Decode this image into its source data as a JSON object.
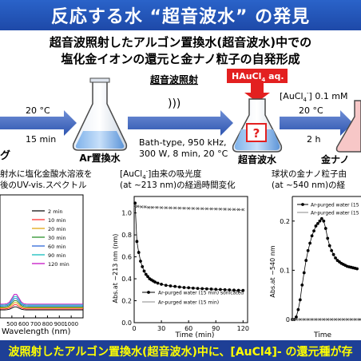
{
  "header": {
    "title": "反応する水 “超音波水” の発見",
    "subtitle_line1": "超音波照射したアルゴン置換水(超音波水)中での",
    "subtitle_line2": "塩化金イオンの還元と金ナノ粒子の自発形成"
  },
  "flow": {
    "step1": {
      "temp": "20 °C",
      "time": "15 min"
    },
    "label_left": "グ",
    "flask_ar_label": "Ar置換水",
    "ultrasound": {
      "title": "超音波照射",
      "waves": ")))",
      "line1": "Bath-type, 950 kHz,",
      "line2": "300 W, 8 min, 20 °C"
    },
    "haucl4_label": "HAuCl",
    "haucl4_sub": "4",
    "haucl4_suffix": " aq.",
    "question_mark": "?",
    "flask_sono_label": "超音波水",
    "step2": {
      "conc_prefix": "[AuCl",
      "conc_sub": "4",
      "conc_sup": "-",
      "conc_suffix": "] 0.1 mM",
      "temp": "20 °C",
      "time": "2 h"
    },
    "flask_right_label": "金ナノ"
  },
  "captions": {
    "left_line1": "射水に塩化金酸水溶液を",
    "left_line2": "後のUV-vis.スペクトル",
    "mid_line1_prefix": "[AuCl",
    "mid_line1_sub": "4",
    "mid_line1_sup": "-",
    "mid_line1_suffix": "]由来の吸光度",
    "mid_line2": "(at ~213 nm)の経過時間変化",
    "right_line1": "球状の金ナノ粒子由",
    "right_line2": "(at ~540 nm)の経"
  },
  "footer": {
    "text": "波照射したアルゴン置換水(超音波水)中に、[AuCl4]- の還元種が存"
  },
  "chart_data": [
    {
      "type": "line",
      "xlabel": "Wavelength (nm)",
      "xticks": [
        500,
        600,
        700,
        800,
        900,
        1000
      ],
      "xlim": [
        400,
        1100
      ],
      "ylim": [
        0,
        1
      ],
      "series": [
        {
          "name": "2 min",
          "color": "#000000"
        },
        {
          "name": "10 min",
          "color": "#ff2020"
        },
        {
          "name": "20 min",
          "color": "#e0a000"
        },
        {
          "name": "30 min",
          "color": "#1a8a1a"
        },
        {
          "name": "60 min",
          "color": "#1e5bd6"
        },
        {
          "name": "90 min",
          "color": "#00b8b8"
        },
        {
          "name": "120 min",
          "color": "#c000c0"
        }
      ]
    },
    {
      "type": "line",
      "xlabel": "Time (min)",
      "ylabel": "Abs.at ~213 nm (nm)",
      "xticks": [
        0,
        30,
        60,
        90,
        120
      ],
      "yticks": [
        0,
        0.2,
        0.4,
        0.6,
        0.8,
        1.0
      ],
      "xlim": [
        0,
        125
      ],
      "ylim": [
        0,
        1.15
      ],
      "series": [
        {
          "name": "Ar-purged water (15 min) sonicated",
          "marker": "filled",
          "x": [
            1,
            3,
            5,
            7,
            9,
            11,
            13,
            15,
            17,
            19,
            21,
            23,
            26,
            30,
            35,
            40,
            45,
            50,
            55,
            60,
            65,
            70,
            75,
            80,
            85,
            90,
            95,
            100,
            105,
            110,
            115,
            120
          ],
          "y": [
            1.09,
            0.74,
            0.64,
            0.56,
            0.51,
            0.47,
            0.44,
            0.42,
            0.4,
            0.39,
            0.38,
            0.37,
            0.36,
            0.35,
            0.34,
            0.335,
            0.33,
            0.325,
            0.32,
            0.318,
            0.315,
            0.312,
            0.31,
            0.308,
            0.306,
            0.304,
            0.302,
            0.3,
            0.298,
            0.296,
            0.295,
            0.294
          ]
        },
        {
          "name": "Ar-purged water (15 min)",
          "marker": "open",
          "x": [
            1,
            4,
            8,
            12,
            16,
            20,
            25,
            30,
            35,
            40,
            45,
            50,
            55,
            60,
            65,
            70,
            75,
            80,
            85,
            90,
            95,
            100,
            105,
            110,
            115,
            120
          ],
          "y": [
            1.06,
            1.06,
            1.055,
            1.055,
            1.05,
            1.05,
            1.05,
            1.048,
            1.047,
            1.046,
            1.045,
            1.044,
            1.043,
            1.042,
            1.041,
            1.04,
            1.039,
            1.038,
            1.037,
            1.036,
            1.035,
            1.034,
            1.033,
            1.032,
            1.031,
            1.03
          ]
        }
      ]
    },
    {
      "type": "line",
      "ylabel": "Abs.at ~540 nm",
      "xlabel": "Time",
      "yticks": [
        0,
        0.1,
        0.2
      ],
      "xlim": [
        0,
        70
      ],
      "ylim": [
        0,
        0.25
      ],
      "series": [
        {
          "name": "Ar-purged water (15",
          "marker": "filled",
          "x": [
            0,
            2,
            4,
            6,
            8,
            10,
            12,
            14,
            16,
            18,
            20,
            22,
            24,
            26,
            28,
            30,
            32,
            34,
            36,
            38,
            40,
            42,
            44,
            46,
            48,
            50,
            52,
            54,
            56,
            58,
            60,
            62,
            64,
            66
          ],
          "y": [
            0.0,
            0.0,
            0.005,
            0.02,
            0.04,
            0.07,
            0.095,
            0.12,
            0.14,
            0.155,
            0.17,
            0.18,
            0.19,
            0.195,
            0.2,
            0.205,
            0.2,
            0.185,
            0.165,
            0.15,
            0.14,
            0.132,
            0.125,
            0.12,
            0.117,
            0.114,
            0.112,
            0.11,
            0.108,
            0.107,
            0.106,
            0.105,
            0.104,
            0.103
          ]
        },
        {
          "name": "Ar-purged water (15",
          "marker": "open",
          "x": [
            0,
            4,
            8,
            12,
            16,
            20,
            24,
            28,
            32,
            36,
            40,
            44,
            48,
            52,
            56,
            60,
            64,
            68
          ],
          "y": [
            0.0,
            0.0,
            0.0,
            0.0,
            0.0,
            0.0,
            0.0,
            0.0,
            0.0,
            0.0,
            0.0,
            0.0,
            0.0,
            0.0,
            0.0,
            0.0,
            0.0,
            0.0
          ]
        }
      ]
    }
  ]
}
